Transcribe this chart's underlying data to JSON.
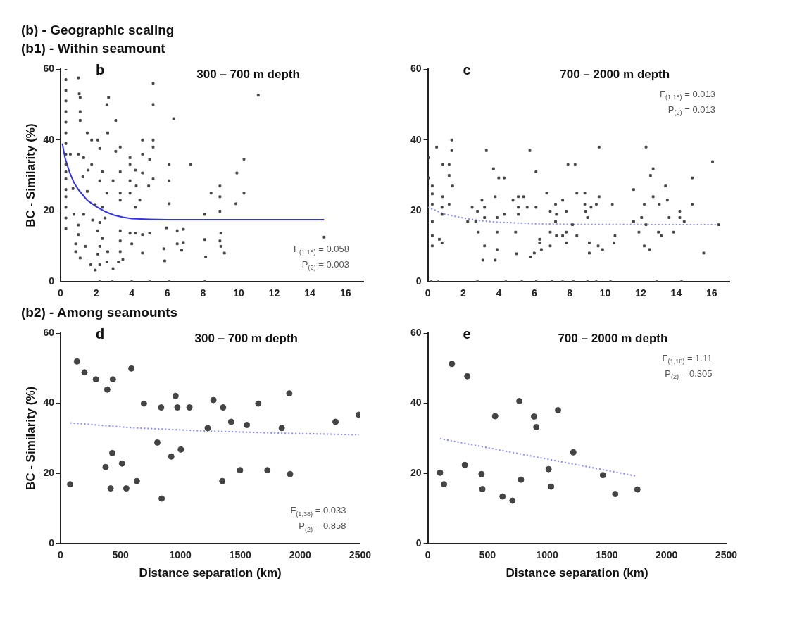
{
  "chart_data": [
    {
      "type": "other",
      "title": "(b) - Geographic scaling",
      "subtitle": "(b1) - Within seamount"
    },
    {
      "type": "scatter",
      "title": "b",
      "subtitle": "300 – 700 m depth",
      "ylabel": "BC - Similarity (%)",
      "xlim": [
        0,
        17
      ],
      "xticks": [
        0,
        2,
        4,
        6,
        8,
        10,
        12,
        14,
        16
      ],
      "ylim": [
        0,
        60
      ],
      "yticks": [
        0,
        20,
        40,
        60
      ],
      "annotations": [
        "F$_{(1,18)}$ = 0.058",
        "P$_{(2)}$ = 0.003"
      ],
      "series": [
        {
          "type": "scatter",
          "color": "#444444",
          "marker": "square",
          "x": [
            0.3,
            0.3,
            0.3,
            0.3,
            0.3,
            0.3,
            0.3,
            0.3,
            0.3,
            0.3,
            0.3,
            0.3,
            0.3,
            0.3,
            0.3,
            0.3,
            0.3,
            1.0,
            1.05,
            1.1,
            1.1,
            1.1,
            2.7,
            2.6,
            3.1,
            2.65,
            1.5,
            1.75,
            2.1,
            2.2,
            3.1,
            3.35,
            4.6,
            5.2,
            5.2,
            5.2,
            5.2,
            6.35,
            11.1,
            3.9,
            4.6,
            5.0,
            6.1,
            7.3,
            10.3,
            9.9,
            10.3,
            9.85,
            8.95,
            8.95,
            8.45,
            8.95,
            8.1,
            6.1,
            6.1,
            5.2,
            4.95,
            3.9,
            4.2,
            4.6,
            3.9,
            4.25,
            3.9,
            4.45,
            4.2,
            3.35,
            3.35,
            3.35,
            2.95,
            2.35,
            2.2,
            2.6,
            1.75,
            1.3,
            0.55,
            1.0,
            1.55,
            1.25,
            1.5,
            0.7,
            1.3,
            0.75,
            1.95,
            2.35,
            1.8,
            2.2,
            2.5,
            1.0,
            1.0,
            0.85,
            0.85,
            1.1,
            1.4,
            1.7,
            1.95,
            2.2,
            2.6,
            2.95,
            3.25,
            2.1,
            2.35,
            2.2,
            2.65,
            2.1,
            3.35,
            3.35,
            3.35,
            3.5,
            3.9,
            4.2,
            4.0,
            4.6,
            5.0,
            4.6,
            5.95,
            5.8,
            5.85,
            6.55,
            6.9,
            6.55,
            6.9,
            6.8,
            8.1,
            8.15,
            9.0,
            8.95,
            9.0,
            9.2,
            14.8,
            2.2,
            2.9,
            4.0,
            5.0,
            6.1,
            8.1
          ],
          "values": [
            60,
            57,
            54,
            51,
            48,
            45,
            42,
            39,
            36,
            33,
            31,
            29,
            26,
            24,
            21,
            18,
            15,
            57.5,
            53,
            52,
            48,
            45.5,
            52,
            50,
            45.5,
            42,
            42,
            40,
            40,
            37.6,
            36.8,
            38,
            40,
            40,
            38,
            56,
            50,
            46,
            52.6,
            35,
            36,
            34.5,
            33,
            33,
            34.6,
            30.7,
            25,
            22,
            27,
            24,
            25,
            19.9,
            19,
            28.5,
            22,
            29,
            27,
            33,
            31.5,
            30.7,
            28.5,
            27,
            25,
            23,
            21,
            31,
            25,
            23,
            28.5,
            31,
            28.5,
            25,
            33,
            35,
            36,
            36,
            31.5,
            29.6,
            25.5,
            26.3,
            19,
            19,
            21.8,
            21,
            17.4,
            16.7,
            18,
            16,
            13.3,
            10.7,
            8.5,
            6.7,
            10,
            4.8,
            3.3,
            4.8,
            5.6,
            3.7,
            5.6,
            14.4,
            12.2,
            10,
            8.5,
            7.8,
            14.4,
            11.5,
            8.5,
            6.3,
            13.7,
            13.7,
            10.7,
            13.3,
            13.7,
            8.1,
            15.2,
            9.3,
            5.9,
            14.4,
            14.8,
            10.7,
            11.1,
            8.9,
            11.9,
            7,
            13.7,
            11.5,
            10,
            8.1,
            12.6,
            0,
            0,
            0,
            0,
            0,
            0
          ]
        },
        {
          "type": "line",
          "color": "#3333ee",
          "line_style": "solid",
          "marker": "none",
          "x": [
            0.1,
            0.25,
            0.5,
            0.75,
            1,
            1.5,
            2,
            2.5,
            3,
            3.5,
            4,
            5,
            6,
            8,
            10,
            12,
            14.8
          ],
          "values": [
            39,
            35,
            31,
            28,
            26,
            23,
            21.2,
            19.8,
            18.8,
            18.2,
            17.8,
            17.6,
            17.5,
            17.5,
            17.5,
            17.5,
            17.5
          ]
        }
      ]
    },
    {
      "type": "scatter",
      "title": "c",
      "subtitle": "700 – 2000 m depth",
      "xlim": [
        0,
        17
      ],
      "xticks": [
        0,
        2,
        4,
        6,
        8,
        10,
        12,
        14,
        16
      ],
      "ylim": [
        0,
        60
      ],
      "yticks": [
        0,
        20,
        40,
        60
      ],
      "annotations": [
        "F$_{(1,18)}$ = 0.013",
        "P$_{(2)}$ = 0.013"
      ],
      "series": [
        {
          "type": "scatter",
          "color": "#444444",
          "marker": "square",
          "x": [
            0.05,
            0.05,
            0.25,
            0.25,
            0.25,
            0.25,
            0.25,
            0.25,
            0.5,
            0.85,
            1.2,
            0.85,
            0.8,
            1.2,
            1.35,
            1.35,
            1.4,
            1.2,
            0.65,
            0.8,
            0.8,
            2.25,
            2.5,
            2.8,
            2.7,
            2.85,
            3.05,
            3.2,
            3.2,
            3.2,
            3.1,
            3.3,
            3.7,
            3.8,
            3.9,
            3.9,
            3.9,
            3.8,
            4.0,
            4.3,
            4.3,
            4.8,
            4.95,
            5.0,
            5.1,
            5.1,
            5.1,
            5.4,
            5.6,
            5.75,
            5.8,
            6.0,
            6.1,
            6.1,
            6.3,
            6.3,
            6.4,
            6.7,
            6.9,
            6.9,
            6.9,
            7.2,
            7.25,
            7.2,
            7.25,
            7.6,
            7.6,
            7.8,
            7.8,
            7.8,
            7.9,
            8.3,
            8.15,
            8.4,
            8.4,
            8.85,
            8.85,
            8.9,
            9.0,
            9.1,
            9.1,
            9.2,
            9.5,
            9.65,
            9.65,
            9.6,
            9.85,
            10.4,
            10.5,
            10.55,
            11.6,
            11.6,
            11.9,
            12.05,
            12.2,
            12.3,
            12.3,
            12.2,
            12.5,
            12.55,
            12.7,
            12.7,
            13.0,
            13.05,
            13.15,
            13.4,
            13.5,
            13.6,
            13.85,
            14.2,
            14.2,
            14.45,
            14.9,
            14.9,
            15.55,
            16.05,
            16.4,
            0.2,
            0.6,
            2.8,
            4.4,
            5.3,
            6.1,
            7.0,
            7.6,
            8.2,
            9.0,
            9.5,
            10.3,
            12.9,
            14.3
          ],
          "values": [
            35,
            29.3,
            27,
            24.8,
            21.9,
            17,
            13,
            10.1,
            38,
            33,
            33,
            24,
            21,
            30,
            40,
            37,
            27,
            21.9,
            12,
            11,
            19,
            17,
            21,
            19.9,
            17,
            14,
            23,
            21,
            18.1,
            10.1,
            6.1,
            37,
            31.9,
            24,
            18.1,
            14,
            9.1,
            6.1,
            29.3,
            29.3,
            19,
            23,
            14,
            7.9,
            24,
            21,
            19,
            24,
            21,
            37,
            7,
            8.1,
            31,
            21,
            12,
            11,
            9.1,
            25,
            19.9,
            14,
            10.1,
            21.9,
            19,
            17,
            13,
            23,
            13,
            19.9,
            14,
            11,
            33,
            33,
            16.1,
            25,
            13,
            25,
            21.9,
            19.9,
            18.1,
            11,
            8.1,
            21,
            21.9,
            38,
            24,
            10.1,
            9.1,
            21.9,
            11,
            13,
            26,
            17,
            14,
            18.1,
            21.9,
            16.1,
            38,
            10.1,
            9.1,
            30,
            31.9,
            24,
            14,
            21.9,
            13,
            27,
            23,
            18.1,
            14,
            19.9,
            18.1,
            17,
            29.3,
            21.9,
            8.1,
            33.9,
            16.1,
            0,
            0,
            0,
            0,
            0,
            0,
            0,
            0,
            0,
            0,
            0,
            0,
            0,
            0
          ]
        },
        {
          "type": "line",
          "color": "#8888ff",
          "line_style": "dotted",
          "marker": "none",
          "x": [
            0,
            0.5,
            1,
            2,
            3,
            4,
            6,
            8,
            16.4
          ],
          "values": [
            21,
            20,
            19,
            18,
            17.2,
            16.8,
            16.4,
            16.2,
            16.1
          ]
        }
      ]
    },
    {
      "type": "other",
      "title": "(b2) - Among seamounts"
    },
    {
      "type": "scatter",
      "title": "d",
      "subtitle": "300 – 700 m depth",
      "xlabel": "Distance separation (km)",
      "ylabel": "BC - Similarity (%)",
      "xlim": [
        0,
        2500
      ],
      "xticks": [
        0,
        500,
        1000,
        1500,
        2000,
        2500
      ],
      "ylim": [
        0,
        60
      ],
      "yticks": [
        0,
        20,
        40,
        60
      ],
      "annotations": [
        "F$_{(1,38)}$ = 0.033",
        "P$_{(2)}$ = 0.858"
      ],
      "series": [
        {
          "type": "scatter",
          "color": "#444444",
          "marker": "circle",
          "x": [
            80,
            137,
            200,
            295,
            390,
            437,
            376,
            432,
            418,
            513,
            549,
            591,
            637,
            696,
            808,
            840,
            844,
            924,
            960,
            975,
            1004,
            1076,
            1228,
            1276,
            1350,
            1357,
            1424,
            1498,
            1555,
            1650,
            1726,
            1846,
            1909,
            1916,
            2295,
            2490
          ],
          "values": [
            16.9,
            51.9,
            48.8,
            46.8,
            43.9,
            46.8,
            21.8,
            25.8,
            15.7,
            22.8,
            15.7,
            49.9,
            17.8,
            39.9,
            28.8,
            38.8,
            12.8,
            24.8,
            42.1,
            38.8,
            26.8,
            38.8,
            32.9,
            40.9,
            17.8,
            38.8,
            34.7,
            20.9,
            33.8,
            39.9,
            20.9,
            32.9,
            42.8,
            19.8,
            34.7,
            36.7
          ]
        },
        {
          "type": "line",
          "color": "#8888ff",
          "line_style": "dotted",
          "marker": "none",
          "x": [
            80,
            600,
            1200,
            1800,
            2490
          ],
          "values": [
            34.4,
            33,
            32.1,
            31.5,
            31
          ]
        }
      ]
    },
    {
      "type": "scatter",
      "title": "e",
      "subtitle": "700 – 2000 m depth",
      "xlabel": "Distance separation (km)",
      "xlim": [
        0,
        2500
      ],
      "xticks": [
        0,
        500,
        1000,
        1500,
        2000,
        2500
      ],
      "ylim": [
        0,
        60
      ],
      "yticks": [
        0,
        20,
        40,
        60
      ],
      "annotations": [
        "F$_{(1,18)}$ = 1.11",
        "P$_{(2)}$ = 0.305"
      ],
      "series": [
        {
          "type": "scatter",
          "color": "#444444",
          "marker": "circle",
          "x": [
            103,
            136,
            202,
            310,
            331,
            450,
            457,
            564,
            626,
            709,
            767,
            781,
            890,
            909,
            1012,
            1033,
            1091,
            1219,
            1467,
            1570,
            1756
          ],
          "values": [
            20.2,
            16.9,
            51.2,
            22.4,
            47.7,
            19.8,
            15.5,
            36.3,
            13.4,
            12.2,
            40.6,
            18.2,
            36.2,
            33.2,
            21.2,
            16.2,
            38,
            26,
            19.5,
            14.1,
            15.4
          ]
        },
        {
          "type": "line",
          "color": "#8888ff",
          "line_style": "dotted",
          "marker": "none",
          "x": [
            103,
            1752
          ],
          "values": [
            29.9,
            19.2
          ]
        }
      ]
    }
  ]
}
